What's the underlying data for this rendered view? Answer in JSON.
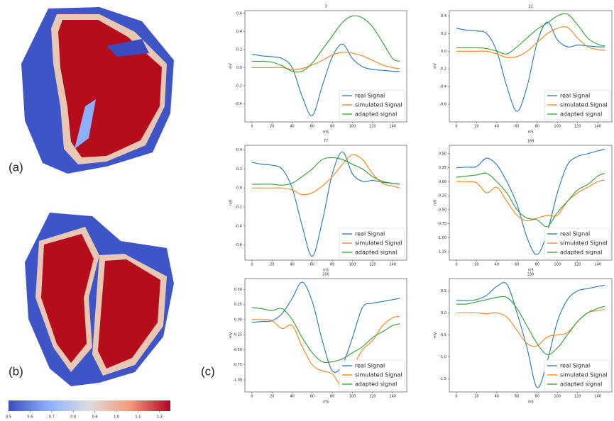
{
  "panel_labels": [
    "(a)",
    "(b)",
    "(c)"
  ],
  "chart_data": [
    {
      "type": "colorbar",
      "xlim": [
        0.5,
        1.25
      ],
      "xticks": [
        0.5,
        0.6,
        0.7,
        0.8,
        0.9,
        {
          "value": 1.0,
          "label": "1.0"
        },
        1.1,
        1.2
      ],
      "colors": [
        "#3b4cc0",
        "#8db0fe",
        "#dddddd",
        "#f49a7b",
        "#b40426"
      ]
    },
    {
      "type": "line",
      "title": "3",
      "xlabel": "mS",
      "ylabel": "mV",
      "legend": "lower right",
      "x": [
        0,
        10,
        20,
        30,
        40,
        50,
        60,
        70,
        80,
        90,
        100,
        110,
        120,
        130,
        140,
        147
      ],
      "xlim": [
        -7,
        154
      ],
      "xticks": [
        0,
        20,
        40,
        60,
        80,
        100,
        120,
        140
      ],
      "ylim": [
        -0.6,
        0.63
      ],
      "yticks": [
        -0.4,
        -0.2,
        {
          "value": 0,
          "label": "0.0"
        },
        0.2,
        0.4,
        0.6
      ],
      "series": [
        {
          "name": "real Signal",
          "color": "#1f77b4",
          "values": [
            0.15,
            0.13,
            0.12,
            0.1,
            0.0,
            -0.32,
            -0.53,
            -0.2,
            0.12,
            0.26,
            0.1,
            0.01,
            -0.02,
            -0.03,
            -0.04,
            -0.04
          ]
        },
        {
          "name": "simulated Signal",
          "color": "#ff7f0e",
          "values": [
            0,
            0,
            0,
            0,
            -0.02,
            -0.01,
            0.03,
            0.08,
            0.14,
            0.17,
            0.16,
            0.13,
            0.08,
            0.03,
            0.0,
            -0.01
          ]
        },
        {
          "name": "adapted signal",
          "color": "#2ca02c",
          "values": [
            0.07,
            0.07,
            0.06,
            0.02,
            -0.04,
            -0.04,
            0.05,
            0.2,
            0.35,
            0.5,
            0.57,
            0.55,
            0.45,
            0.28,
            0.1,
            0.07
          ]
        }
      ]
    },
    {
      "type": "line",
      "title": "22",
      "xlabel": "mS",
      "ylabel": "mV",
      "legend": "lower right",
      "x": [
        0,
        10,
        20,
        30,
        40,
        50,
        60,
        70,
        80,
        90,
        100,
        110,
        120,
        130,
        140,
        147
      ],
      "xlim": [
        -7,
        154
      ],
      "xticks": [
        0,
        20,
        40,
        60,
        80,
        100,
        120,
        140
      ],
      "ylim": [
        -0.8,
        0.46
      ],
      "yticks": [
        -0.6,
        -0.4,
        -0.2,
        {
          "value": 0,
          "label": "0.0"
        },
        0.2,
        0.4
      ],
      "series": [
        {
          "name": "real Signal",
          "color": "#1f77b4",
          "values": [
            0.26,
            0.24,
            0.23,
            0.2,
            0.0,
            -0.4,
            -0.68,
            -0.4,
            0.1,
            0.33,
            0.13,
            0.05,
            0.07,
            0.06,
            0.05,
            0.05
          ]
        },
        {
          "name": "simulated Signal",
          "color": "#ff7f0e",
          "values": [
            0,
            0,
            0,
            0,
            -0.03,
            -0.07,
            -0.06,
            0.0,
            0.1,
            0.2,
            0.26,
            0.27,
            0.15,
            0.05,
            0.02,
            0.01
          ]
        },
        {
          "name": "adapted signal",
          "color": "#2ca02c",
          "values": [
            0.04,
            0.04,
            0.04,
            0.03,
            0.0,
            -0.03,
            0.05,
            0.15,
            0.25,
            0.32,
            0.4,
            0.42,
            0.3,
            0.15,
            0.08,
            0.06
          ]
        }
      ]
    },
    {
      "type": "line",
      "title": "77",
      "xlabel": "mS",
      "ylabel": "mV",
      "legend": "lower right",
      "x": [
        0,
        10,
        20,
        30,
        40,
        50,
        60,
        70,
        80,
        90,
        100,
        110,
        120,
        130,
        140,
        147
      ],
      "xlim": [
        -7,
        154
      ],
      "xticks": [
        0,
        20,
        40,
        60,
        80,
        100,
        120,
        140
      ],
      "ylim": [
        -0.76,
        0.45
      ],
      "yticks": [
        -0.6,
        -0.4,
        -0.2,
        {
          "value": 0,
          "label": "0.0"
        },
        0.2,
        0.4
      ],
      "series": [
        {
          "name": "real Signal",
          "color": "#1f77b4",
          "values": [
            0.27,
            0.25,
            0.24,
            0.2,
            0.0,
            -0.4,
            -0.72,
            -0.35,
            0.15,
            0.38,
            0.15,
            0.07,
            0.08,
            0.06,
            0.05,
            0.04
          ]
        },
        {
          "name": "simulated Signal",
          "color": "#ff7f0e",
          "values": [
            0,
            0,
            0,
            0,
            -0.02,
            -0.07,
            -0.05,
            0.02,
            0.12,
            0.25,
            0.35,
            0.3,
            0.15,
            0.05,
            0.02,
            0.0
          ]
        },
        {
          "name": "adapted signal",
          "color": "#2ca02c",
          "values": [
            0.04,
            0.04,
            0.04,
            0.03,
            0.05,
            0.12,
            0.2,
            0.3,
            0.32,
            0.3,
            0.25,
            0.2,
            0.12,
            0.07,
            0.05,
            0.04
          ]
        }
      ]
    },
    {
      "type": "line",
      "title": "189",
      "xlabel": "mS",
      "ylabel": "mV",
      "legend": "lower right",
      "x": [
        0,
        10,
        20,
        30,
        40,
        50,
        60,
        70,
        80,
        90,
        100,
        110,
        120,
        130,
        140,
        147
      ],
      "xlim": [
        -7,
        154
      ],
      "xticks": [
        0,
        20,
        40,
        60,
        80,
        100,
        120,
        140
      ],
      "ylim": [
        -1.4,
        0.65
      ],
      "yticks": [
        {
          "value": 0.5,
          "label": "0.50"
        },
        0.25,
        {
          "value": 0,
          "label": "0.00"
        },
        -0.25,
        {
          "value": -0.5,
          "label": "-0.50"
        },
        -0.75,
        {
          "value": -1,
          "label": "-1.00"
        },
        -1.25
      ],
      "series": [
        {
          "name": "real Signal",
          "color": "#1f77b4",
          "values": [
            0.25,
            0.26,
            0.27,
            0.42,
            0.3,
            0.0,
            -0.4,
            -1.0,
            -1.3,
            -0.9,
            -0.2,
            0.3,
            0.45,
            0.5,
            0.55,
            0.58
          ]
        },
        {
          "name": "simulated Signal",
          "color": "#ff7f0e",
          "values": [
            0,
            0,
            -0.02,
            -0.2,
            -0.1,
            -0.35,
            -0.6,
            -0.7,
            -0.65,
            -0.6,
            -0.6,
            -0.35,
            -0.2,
            -0.1,
            0.0,
            0.03
          ]
        },
        {
          "name": "adapted signal",
          "color": "#2ca02c",
          "values": [
            0.08,
            0.1,
            0.12,
            0.15,
            0.0,
            -0.2,
            -0.5,
            -0.65,
            -0.68,
            -0.8,
            -0.55,
            -0.35,
            -0.15,
            -0.05,
            0.1,
            0.15
          ]
        }
      ]
    },
    {
      "type": "line",
      "title": "200",
      "xlabel": "mS",
      "ylabel": "mV",
      "legend": "lower right",
      "x": [
        0,
        10,
        20,
        30,
        40,
        50,
        60,
        70,
        80,
        90,
        100,
        110,
        120,
        130,
        140,
        147
      ],
      "xlim": [
        -7,
        154
      ],
      "xticks": [
        0,
        20,
        40,
        60,
        80,
        100,
        120,
        140
      ],
      "ylim": [
        -1.2,
        0.68
      ],
      "yticks": [
        {
          "value": 0.5,
          "label": "0.50"
        },
        0.25,
        {
          "value": 0,
          "label": "0.00"
        },
        -0.25,
        {
          "value": -0.5,
          "label": "-0.50"
        },
        -0.75,
        {
          "value": -1,
          "label": "-1.00"
        }
      ],
      "series": [
        {
          "name": "real Signal",
          "color": "#1f77b4",
          "values": [
            -0.05,
            -0.03,
            -0.02,
            0.1,
            0.35,
            0.62,
            0.3,
            -0.35,
            -0.85,
            -0.75,
            -0.3,
            0.2,
            0.27,
            0.3,
            0.33,
            0.35
          ]
        },
        {
          "name": "simulated Signal",
          "color": "#ff7f0e",
          "values": [
            0,
            0,
            -0.02,
            -0.15,
            -0.1,
            -0.45,
            -0.75,
            -0.85,
            -0.9,
            -1.1,
            -0.8,
            -0.5,
            -0.35,
            -0.1,
            0.03,
            0.05
          ]
        },
        {
          "name": "adapted signal",
          "color": "#2ca02c",
          "values": [
            0.2,
            0.18,
            0.15,
            0.18,
            0.0,
            -0.3,
            -0.55,
            -0.7,
            -0.7,
            -0.65,
            -0.55,
            -0.45,
            -0.3,
            -0.2,
            -0.1,
            -0.07
          ]
        }
      ]
    },
    {
      "type": "line",
      "title": "230",
      "xlabel": "mS",
      "ylabel": "mV",
      "legend": "lower right",
      "x": [
        0,
        10,
        20,
        30,
        40,
        50,
        60,
        70,
        80,
        90,
        100,
        110,
        120,
        130,
        140,
        147
      ],
      "xlim": [
        -7,
        154
      ],
      "xticks": [
        0,
        20,
        40,
        60,
        80,
        100,
        120,
        140
      ],
      "ylim": [
        -1.8,
        0.78
      ],
      "yticks": [
        0.5,
        {
          "value": 0,
          "label": "0.0"
        },
        -0.5,
        {
          "value": -1,
          "label": "-1.0"
        },
        -1.5
      ],
      "series": [
        {
          "name": "real Signal",
          "color": "#1f77b4",
          "values": [
            0.28,
            0.28,
            0.3,
            0.4,
            0.6,
            0.65,
            0.0,
            -0.8,
            -1.7,
            -1.1,
            -0.2,
            0.3,
            0.5,
            0.55,
            0.6,
            0.63
          ]
        },
        {
          "name": "simulated Signal",
          "color": "#ff7f0e",
          "values": [
            0,
            0,
            0,
            -0.02,
            0.0,
            -0.1,
            -0.4,
            -0.7,
            -0.75,
            -0.55,
            -0.5,
            -0.45,
            -0.2,
            0.0,
            0.05,
            0.08
          ]
        },
        {
          "name": "adapted signal",
          "color": "#2ca02c",
          "values": [
            0.2,
            0.2,
            0.25,
            0.3,
            0.35,
            0.35,
            0.1,
            -0.3,
            -0.7,
            -0.95,
            -0.8,
            -0.5,
            -0.2,
            0.0,
            0.1,
            0.15
          ]
        }
      ]
    }
  ]
}
